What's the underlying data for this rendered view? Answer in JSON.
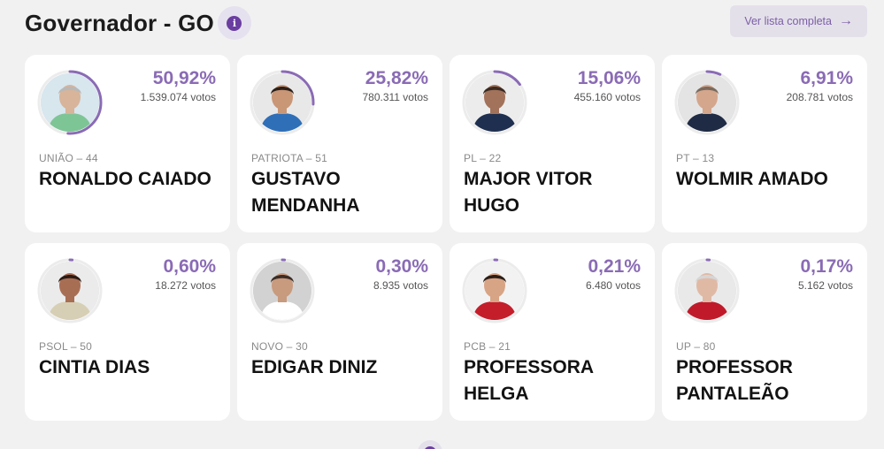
{
  "header": {
    "title": "Governador - GO",
    "info_icon": "info-icon",
    "list_button_label": "Ver lista completa",
    "list_button_icon": "arrow-right-icon"
  },
  "accent_color": "#8a6bb5",
  "candidates": [
    {
      "party": "UNIÃO – 44",
      "name": "RONALDO CAIADO",
      "percent_label": "50,92%",
      "percent": 50.92,
      "votes": "1.539.074 votos",
      "skin": "#d7b49a",
      "hair": "#b8b8b8",
      "shirt": "#7ec596",
      "bg": "#d8e6ee"
    },
    {
      "party": "PATRIOTA – 51",
      "name": "GUSTAVO MENDANHA",
      "percent_label": "25,82%",
      "percent": 25.82,
      "votes": "780.311 votos",
      "skin": "#c99676",
      "hair": "#2b2019",
      "shirt": "#2f6fb8",
      "bg": "#e8e8e8"
    },
    {
      "party": "PL – 22",
      "name": "MAJOR VITOR HUGO",
      "percent_label": "15,06%",
      "percent": 15.06,
      "votes": "455.160 votos",
      "skin": "#a3725a",
      "hair": "#3a2a22",
      "shirt": "#1f2f4f",
      "bg": "#ececec"
    },
    {
      "party": "PT – 13",
      "name": "WOLMIR AMADO",
      "percent_label": "6,91%",
      "percent": 6.91,
      "votes": "208.781 votos",
      "skin": "#d4a68c",
      "hair": "#7a6a5e",
      "shirt": "#1f2a44",
      "bg": "#e4e4e4"
    },
    {
      "party": "PSOL – 50",
      "name": "CINTIA DIAS",
      "percent_label": "0,60%",
      "percent": 0.6,
      "votes": "18.272 votos",
      "skin": "#a86e54",
      "hair": "#2a1a14",
      "shirt": "#d7cfb5",
      "bg": "#ebebeb"
    },
    {
      "party": "NOVO – 30",
      "name": "EDIGAR DINIZ",
      "percent_label": "0,30%",
      "percent": 0.3,
      "votes": "8.935 votos",
      "skin": "#c89a7e",
      "hair": "#3a2d26",
      "shirt": "#ffffff",
      "bg": "#d2d2d2"
    },
    {
      "party": "PCB – 21",
      "name": "PROFESSORA HELGA",
      "percent_label": "0,21%",
      "percent": 0.21,
      "votes": "6.480 votos",
      "skin": "#d8a486",
      "hair": "#2b1f17",
      "shirt": "#c41e2b",
      "bg": "#f2f2f2"
    },
    {
      "party": "UP – 80",
      "name": "PROFESSOR PANTALEÃO",
      "percent_label": "0,17%",
      "percent": 0.17,
      "votes": "5.162 votos",
      "skin": "#e0b9a5",
      "hair": "#d5d5d5",
      "shirt": "#c01a2a",
      "bg": "#e9e9e9"
    }
  ]
}
